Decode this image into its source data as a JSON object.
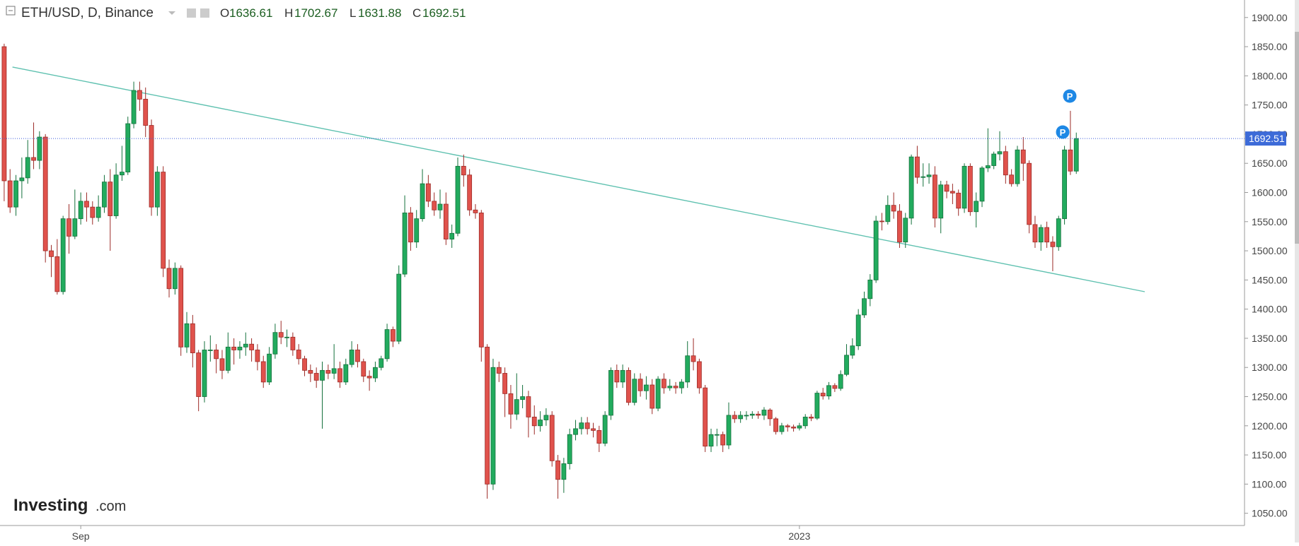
{
  "chart_data": {
    "type": "candlestick",
    "title": "ETH/USD, D, Binance",
    "ohlc_labels": [
      "O",
      "H",
      "L",
      "C"
    ],
    "markers": [
      "P",
      "P"
    ],
    "watermark": [
      "Investing",
      ".com"
    ],
    "up_color": "#22ab5e",
    "down_color": "#e0524c",
    "ylim": [
      1029,
      1930
    ],
    "yticks": [
      {
        "value": 1050,
        "label": "1050.00"
      },
      {
        "value": 1100,
        "label": "1100.00"
      },
      {
        "value": 1150,
        "label": "1150.00"
      },
      {
        "value": 1200,
        "label": "1200.00"
      },
      {
        "value": 1250,
        "label": "1250.00"
      },
      {
        "value": 1300,
        "label": "1300.00"
      },
      {
        "value": 1350,
        "label": "1350.00"
      },
      {
        "value": 1400,
        "label": "1400.00"
      },
      {
        "value": 1450,
        "label": "1450.00"
      },
      {
        "value": 1500,
        "label": "1500.00"
      },
      {
        "value": 1550,
        "label": "1550.00"
      },
      {
        "value": 1600,
        "label": "1600.00"
      },
      {
        "value": 1650,
        "label": "1650.00"
      },
      {
        "value": 1700,
        "label": "1700.00"
      },
      {
        "value": 1750,
        "label": "1750.00"
      },
      {
        "value": 1800,
        "label": "1800.00"
      },
      {
        "value": 1850,
        "label": "1850.00"
      },
      {
        "value": 1900,
        "label": "1900.00"
      }
    ],
    "categories": [
      null,
      null,
      null,
      null,
      null,
      null,
      null,
      null,
      null,
      null,
      null,
      null,
      null,
      "Sep",
      null,
      null,
      null,
      null,
      null,
      null,
      null,
      null,
      null,
      null,
      null,
      null,
      null,
      null,
      null,
      null,
      null,
      null,
      null,
      null,
      null,
      null,
      null,
      null,
      null,
      null,
      null,
      null,
      null,
      null,
      null,
      null,
      null,
      null,
      null,
      null,
      null,
      null,
      null,
      null,
      null,
      null,
      null,
      null,
      null,
      null,
      null,
      null,
      null,
      null,
      null,
      null,
      null,
      null,
      null,
      null,
      null,
      null,
      null,
      null,
      null,
      null,
      null,
      null,
      null,
      null,
      null,
      null,
      null,
      null,
      null,
      null,
      null,
      null,
      null,
      null,
      null,
      null,
      null,
      null,
      null,
      null,
      null,
      null,
      null,
      null,
      null,
      null,
      null,
      null,
      null,
      null,
      null,
      null,
      null,
      null,
      null,
      null,
      null,
      null,
      null,
      null,
      null,
      null,
      null,
      null,
      null,
      null,
      null,
      null,
      null,
      null,
      null,
      null,
      null,
      null,
      null,
      null,
      null,
      null,
      null,
      "2023",
      null,
      null,
      null,
      null,
      null,
      null,
      null,
      null,
      null,
      null,
      null,
      null,
      null,
      null,
      null,
      null,
      null,
      null,
      null,
      null,
      null,
      null,
      null,
      null,
      null,
      null,
      null,
      null,
      null,
      null,
      null,
      null,
      null,
      null,
      null,
      null,
      null,
      null,
      null,
      null,
      null,
      null,
      null,
      null,
      null,
      null,
      null
    ],
    "open": [
      1850,
      1620,
      1575,
      1620,
      1625,
      1660,
      1655,
      1695,
      1500,
      1490,
      1430,
      1555,
      1525,
      1555,
      1585,
      1575,
      1557,
      1575,
      1618,
      1560,
      1630,
      1635,
      1718,
      1775,
      1760,
      1715,
      1575,
      1635,
      1470,
      1435,
      1470,
      1335,
      1375,
      1325,
      1250,
      1330,
      1330,
      1315,
      1295,
      1335,
      1330,
      1335,
      1340,
      1330,
      1310,
      1275,
      1323,
      1360,
      1352,
      1352,
      1330,
      1315,
      1295,
      1290,
      1278,
      1295,
      1290,
      1298,
      1275,
      1305,
      1330,
      1310,
      1285,
      1282,
      1300,
      1315,
      1365,
      1345,
      1460,
      1565,
      1515,
      1555,
      1615,
      1585,
      1570,
      1580,
      1520,
      1530,
      1645,
      1630,
      1570,
      1565,
      1335,
      1100,
      1300,
      1290,
      1255,
      1220,
      1245,
      1250,
      1215,
      1200,
      1210,
      1218,
      1140,
      1108,
      1135,
      1185,
      1195,
      1205,
      1195,
      1192,
      1170,
      1218,
      1295,
      1275,
      1295,
      1240,
      1280,
      1260,
      1270,
      1230,
      1280,
      1265,
      1268,
      1265,
      1275,
      1320,
      1310,
      1265,
      1165,
      1185,
      1185,
      1167,
      1218,
      1212,
      1218,
      1218,
      1220,
      1218,
      1227,
      1212,
      1190,
      1200,
      1198,
      1196,
      1200,
      1215,
      1213,
      1256,
      1251,
      1269,
      1264,
      1288,
      1321,
      1337,
      1390,
      1418,
      1450,
      1551,
      1550,
      1578,
      1568,
      1515,
      1556,
      1661,
      1626,
      1627,
      1630,
      1556,
      1613,
      1602,
      1599,
      1573,
      1645,
      1567,
      1585,
      1642,
      1646,
      1666,
      1670,
      1630,
      1615,
      1673,
      1650,
      1545,
      1515,
      1540,
      1515,
      1507,
      1555,
      1673,
      1636.61
    ],
    "high": [
      1855,
      1640,
      1630,
      1660,
      1690,
      1720,
      1705,
      1700,
      1510,
      1520,
      1560,
      1580,
      1605,
      1600,
      1600,
      1585,
      1595,
      1630,
      1640,
      1650,
      1680,
      1730,
      1790,
      1790,
      1780,
      1725,
      1645,
      1645,
      1485,
      1480,
      1475,
      1395,
      1390,
      1330,
      1345,
      1355,
      1340,
      1330,
      1360,
      1350,
      1345,
      1360,
      1350,
      1340,
      1320,
      1335,
      1375,
      1380,
      1365,
      1360,
      1340,
      1320,
      1305,
      1300,
      1310,
      1305,
      1340,
      1310,
      1315,
      1345,
      1340,
      1315,
      1295,
      1310,
      1320,
      1375,
      1370,
      1475,
      1595,
      1575,
      1570,
      1640,
      1630,
      1600,
      1605,
      1600,
      1545,
      1660,
      1665,
      1640,
      1580,
      1570,
      1340,
      1315,
      1310,
      1300,
      1270,
      1290,
      1270,
      1260,
      1235,
      1225,
      1230,
      1225,
      1150,
      1145,
      1195,
      1210,
      1215,
      1215,
      1205,
      1200,
      1225,
      1300,
      1305,
      1305,
      1300,
      1290,
      1290,
      1285,
      1280,
      1285,
      1290,
      1280,
      1275,
      1280,
      1345,
      1350,
      1315,
      1270,
      1195,
      1195,
      1190,
      1240,
      1225,
      1225,
      1225,
      1225,
      1225,
      1232,
      1230,
      1215,
      1205,
      1203,
      1202,
      1205,
      1220,
      1220,
      1260,
      1265,
      1275,
      1273,
      1295,
      1340,
      1350,
      1400,
      1430,
      1460,
      1560,
      1565,
      1595,
      1600,
      1580,
      1565,
      1665,
      1680,
      1650,
      1650,
      1645,
      1620,
      1620,
      1615,
      1605,
      1650,
      1650,
      1600,
      1645,
      1710,
      1670,
      1705,
      1680,
      1640,
      1680,
      1695,
      1655,
      1560,
      1545,
      1550,
      1525,
      1560,
      1680,
      1740,
      1702.67
    ],
    "low": [
      1585,
      1565,
      1560,
      1590,
      1615,
      1640,
      1640,
      1480,
      1455,
      1425,
      1425,
      1495,
      1520,
      1545,
      1550,
      1545,
      1550,
      1565,
      1500,
      1555,
      1620,
      1630,
      1710,
      1740,
      1695,
      1560,
      1560,
      1455,
      1420,
      1425,
      1320,
      1325,
      1300,
      1225,
      1240,
      1310,
      1290,
      1280,
      1290,
      1305,
      1315,
      1320,
      1310,
      1295,
      1265,
      1270,
      1315,
      1340,
      1335,
      1320,
      1305,
      1285,
      1275,
      1265,
      1195,
      1280,
      1280,
      1265,
      1270,
      1300,
      1300,
      1275,
      1260,
      1275,
      1295,
      1310,
      1335,
      1340,
      1455,
      1500,
      1505,
      1550,
      1575,
      1560,
      1555,
      1510,
      1505,
      1525,
      1610,
      1560,
      1555,
      1310,
      1075,
      1090,
      1275,
      1215,
      1195,
      1210,
      1230,
      1180,
      1185,
      1190,
      1200,
      1130,
      1075,
      1085,
      1125,
      1175,
      1185,
      1185,
      1180,
      1155,
      1165,
      1210,
      1265,
      1265,
      1235,
      1235,
      1250,
      1245,
      1220,
      1225,
      1255,
      1260,
      1255,
      1255,
      1265,
      1295,
      1255,
      1155,
      1155,
      1165,
      1155,
      1160,
      1205,
      1205,
      1210,
      1212,
      1212,
      1210,
      1200,
      1185,
      1185,
      1190,
      1190,
      1192,
      1195,
      1208,
      1210,
      1245,
      1245,
      1258,
      1260,
      1285,
      1315,
      1330,
      1385,
      1405,
      1445,
      1535,
      1545,
      1555,
      1505,
      1505,
      1545,
      1615,
      1610,
      1615,
      1540,
      1530,
      1590,
      1580,
      1560,
      1565,
      1560,
      1540,
      1575,
      1635,
      1640,
      1655,
      1615,
      1610,
      1610,
      1620,
      1530,
      1505,
      1500,
      1505,
      1465,
      1500,
      1545,
      1630,
      1631.88
    ],
    "close": [
      1620,
      1575,
      1620,
      1625,
      1660,
      1655,
      1695,
      1500,
      1490,
      1430,
      1555,
      1525,
      1555,
      1585,
      1575,
      1557,
      1575,
      1618,
      1560,
      1630,
      1635,
      1718,
      1775,
      1760,
      1715,
      1575,
      1635,
      1470,
      1435,
      1470,
      1335,
      1375,
      1325,
      1250,
      1330,
      1330,
      1315,
      1295,
      1335,
      1330,
      1335,
      1340,
      1330,
      1310,
      1275,
      1323,
      1360,
      1352,
      1352,
      1330,
      1315,
      1295,
      1290,
      1278,
      1295,
      1290,
      1298,
      1275,
      1305,
      1330,
      1310,
      1285,
      1282,
      1300,
      1315,
      1365,
      1345,
      1460,
      1565,
      1515,
      1555,
      1615,
      1585,
      1570,
      1580,
      1520,
      1530,
      1645,
      1630,
      1570,
      1565,
      1335,
      1100,
      1300,
      1290,
      1255,
      1220,
      1245,
      1250,
      1215,
      1200,
      1210,
      1218,
      1140,
      1108,
      1135,
      1185,
      1195,
      1205,
      1195,
      1192,
      1170,
      1218,
      1295,
      1275,
      1295,
      1240,
      1280,
      1260,
      1270,
      1230,
      1280,
      1265,
      1268,
      1265,
      1275,
      1320,
      1310,
      1265,
      1165,
      1185,
      1185,
      1167,
      1218,
      1212,
      1218,
      1218,
      1220,
      1218,
      1227,
      1212,
      1190,
      1200,
      1198,
      1196,
      1200,
      1215,
      1213,
      1256,
      1251,
      1269,
      1264,
      1288,
      1321,
      1337,
      1390,
      1418,
      1450,
      1551,
      1550,
      1578,
      1568,
      1515,
      1556,
      1661,
      1626,
      1627,
      1630,
      1556,
      1613,
      1602,
      1599,
      1573,
      1645,
      1567,
      1585,
      1642,
      1646,
      1666,
      1670,
      1630,
      1615,
      1673,
      1650,
      1545,
      1515,
      1540,
      1515,
      1507,
      1555,
      1673,
      1636.61,
      1692.51
    ]
  }
}
